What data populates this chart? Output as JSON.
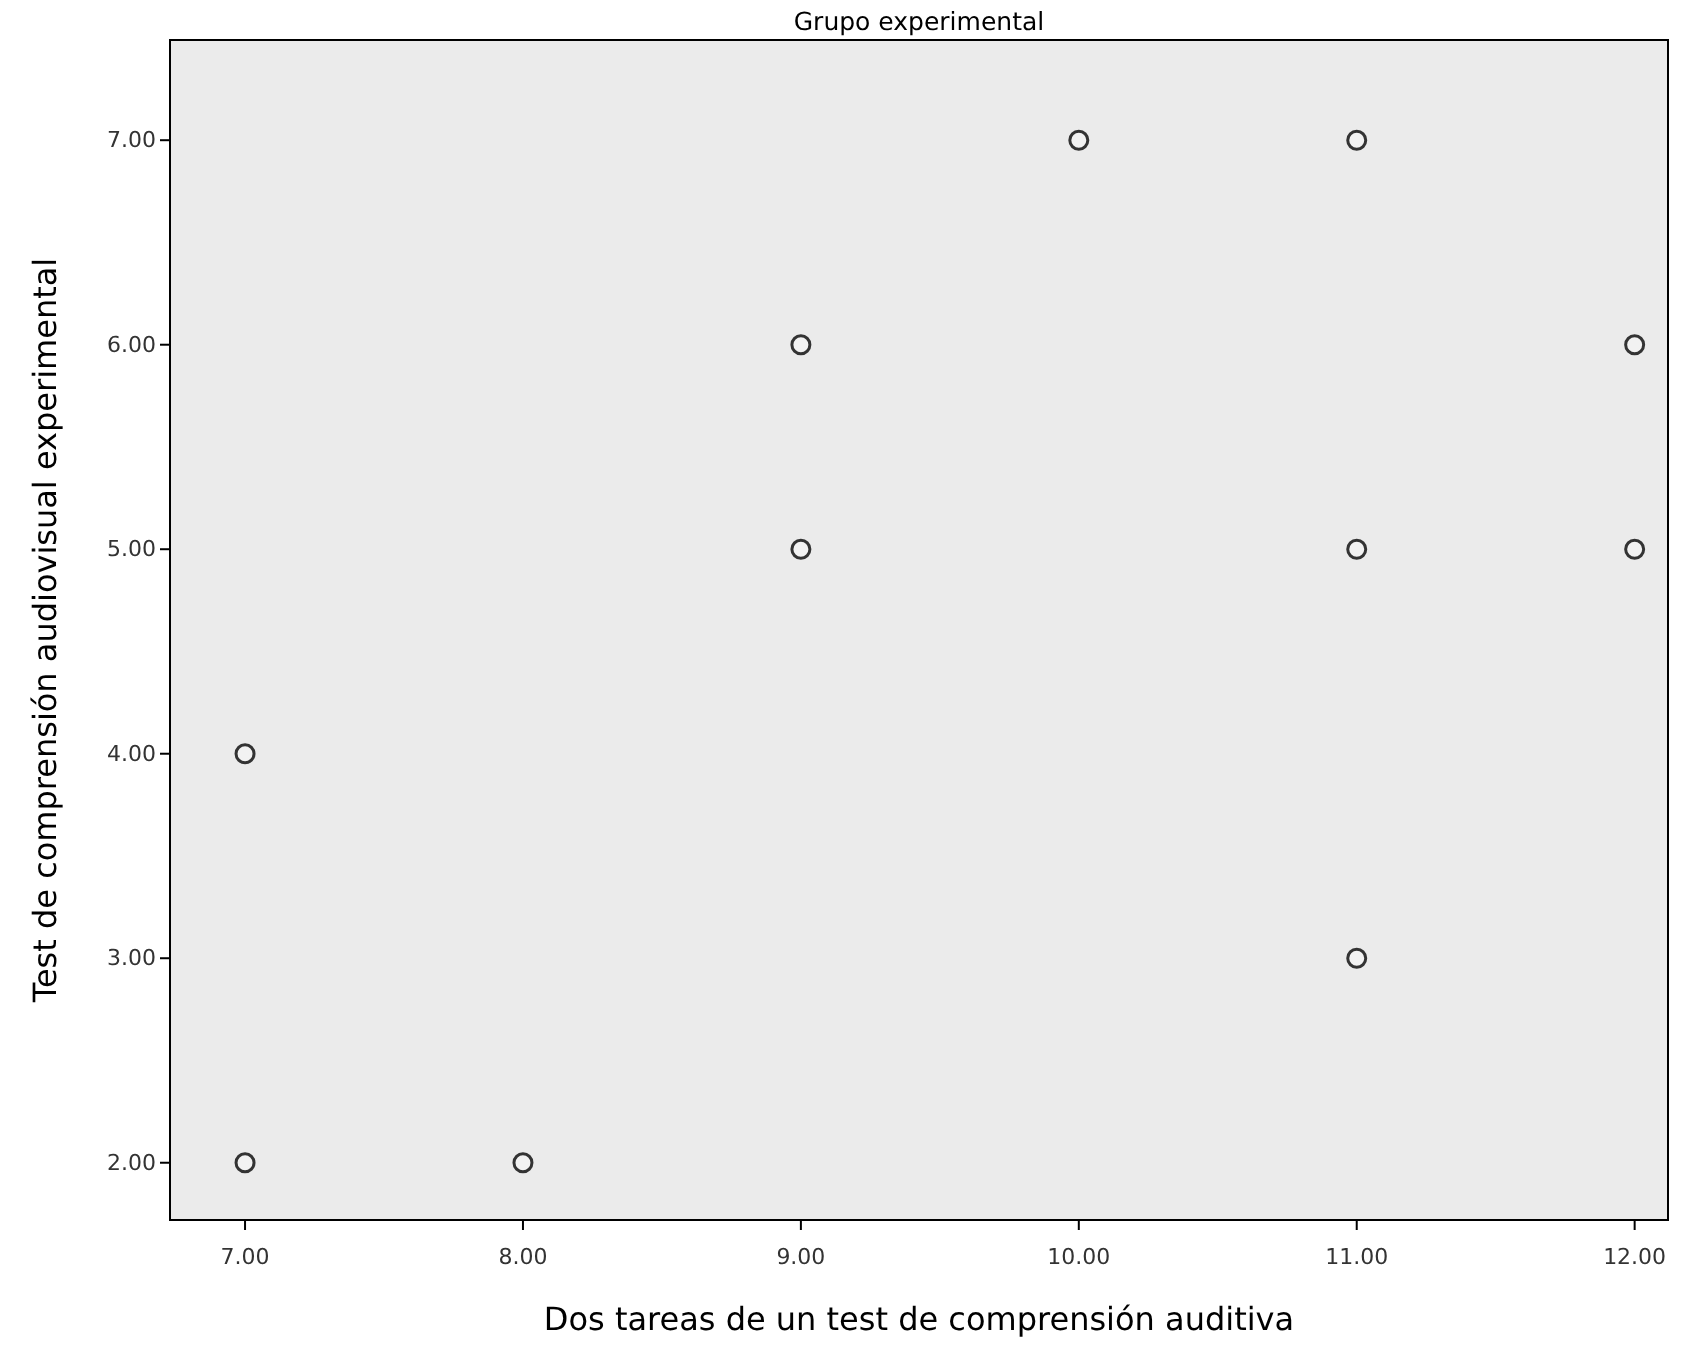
{
  "chart_data": {
    "type": "scatter",
    "title": "Grupo experimental",
    "xlabel": "Dos tareas de un test de comprensión auditiva",
    "ylabel": "Test de comprensión audiovisual experimental",
    "x": [
      7,
      7,
      8,
      9,
      9,
      10,
      11,
      11,
      11,
      12,
      12
    ],
    "series": [
      {
        "color": "#333333",
        "values": [
          4,
          2,
          2,
          6,
          5,
          7,
          7,
          5,
          3,
          6,
          5
        ]
      }
    ],
    "xlim": [
      6.73,
      12.12
    ],
    "ylim": [
      1.72,
      7.49
    ],
    "xticks": [
      {
        "value": 7,
        "label": "7.00"
      },
      {
        "value": 8,
        "label": "8.00"
      },
      {
        "value": 9,
        "label": "9.00"
      },
      {
        "value": 10,
        "label": "10.00"
      },
      {
        "value": 11,
        "label": "11.00"
      },
      {
        "value": 12,
        "label": "12.00"
      }
    ],
    "yticks": [
      {
        "value": 2,
        "label": "2.00"
      },
      {
        "value": 3,
        "label": "3.00"
      },
      {
        "value": 4,
        "label": "4.00"
      },
      {
        "value": 5,
        "label": "5.00"
      },
      {
        "value": 6,
        "label": "6.00"
      },
      {
        "value": 7,
        "label": "7.00"
      }
    ],
    "marker": "circle",
    "grid": false
  }
}
